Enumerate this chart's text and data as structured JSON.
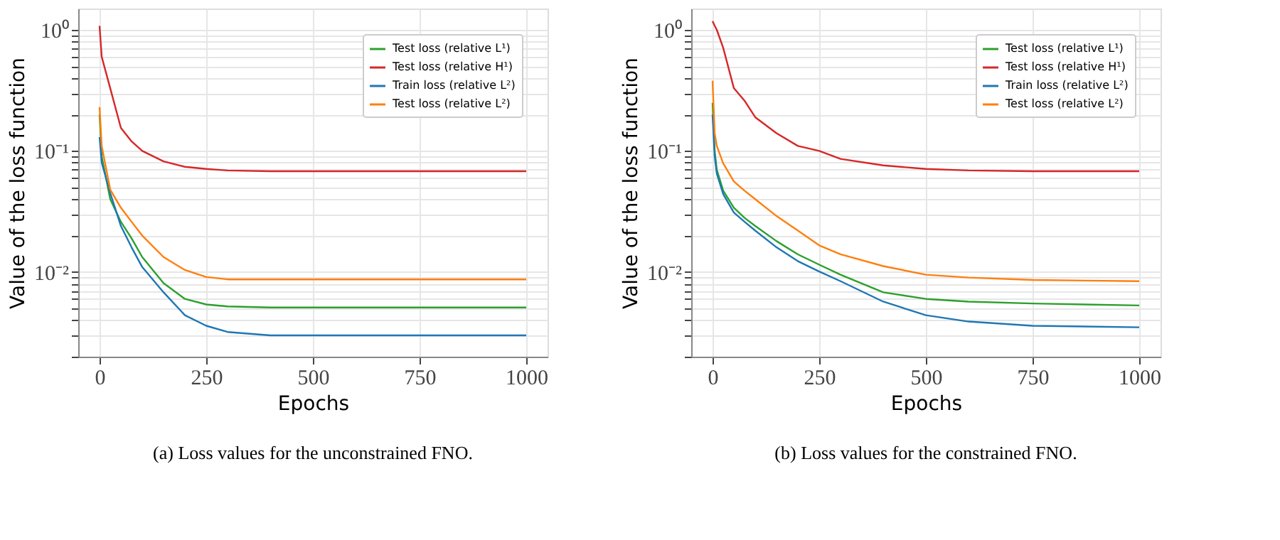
{
  "chart_data": [
    {
      "type": "line",
      "title": "(a) Loss values for the unconstrained FNO.",
      "xlabel": "Epochs",
      "ylabel": "Value of the loss function",
      "log": "y",
      "grid": true,
      "legend": "top right",
      "marker": "none",
      "line_style": "solid",
      "xlim": [
        -50,
        1050
      ],
      "xticks": [
        0,
        250,
        500,
        750,
        1000
      ],
      "ylim": [
        0.002,
        1.5
      ],
      "yticks": [
        {
          "value": 0.002,
          "label": null
        },
        {
          "value": 0.003,
          "label": null
        },
        {
          "value": 0.004,
          "label": null
        },
        {
          "value": 0.005,
          "label": null
        },
        {
          "value": 0.006,
          "label": null
        },
        {
          "value": 0.007,
          "label": null
        },
        {
          "value": 0.008,
          "label": null
        },
        {
          "value": 0.009,
          "label": null
        },
        {
          "value": 0.01,
          "label": "10⁻²"
        },
        {
          "value": 0.02,
          "label": null
        },
        {
          "value": 0.03,
          "label": null
        },
        {
          "value": 0.04,
          "label": null
        },
        {
          "value": 0.05,
          "label": null
        },
        {
          "value": 0.06,
          "label": null
        },
        {
          "value": 0.07,
          "label": null
        },
        {
          "value": 0.08,
          "label": null
        },
        {
          "value": 0.09,
          "label": null
        },
        {
          "value": 0.1,
          "label": "10⁻¹"
        },
        {
          "value": 0.2,
          "label": null
        },
        {
          "value": 0.3,
          "label": null
        },
        {
          "value": 0.4,
          "label": null
        },
        {
          "value": 0.5,
          "label": null
        },
        {
          "value": 0.6,
          "label": null
        },
        {
          "value": 0.7,
          "label": null
        },
        {
          "value": 0.8,
          "label": null
        },
        {
          "value": 0.9,
          "label": null
        },
        {
          "value": 1,
          "label": "10⁰"
        }
      ],
      "x": [
        0,
        5,
        25,
        50,
        75,
        100,
        150,
        200,
        250,
        300,
        400,
        500,
        750,
        1000
      ],
      "series": [
        {
          "name": "Test loss (relative L¹)",
          "color": "#2ca02c",
          "values": [
            0.2,
            0.09,
            0.04,
            0.026,
            0.019,
            0.0133,
            0.0081,
            0.006,
            0.0054,
            0.0052,
            0.0051,
            0.0051,
            0.0051,
            0.0051
          ]
        },
        {
          "name": "Test loss (relative H¹)",
          "color": "#d62728",
          "values": [
            1.08,
            0.6,
            0.33,
            0.155,
            0.12,
            0.1,
            0.082,
            0.074,
            0.071,
            0.069,
            0.068,
            0.068,
            0.068,
            0.068
          ]
        },
        {
          "name": "Train loss (relative L²)",
          "color": "#1f77b4",
          "values": [
            0.13,
            0.08,
            0.045,
            0.024,
            0.016,
            0.011,
            0.0068,
            0.0044,
            0.0036,
            0.0032,
            0.003,
            0.003,
            0.003,
            0.003
          ]
        },
        {
          "name": "Test loss (relative L²)",
          "color": "#ff7f0e",
          "values": [
            0.23,
            0.11,
            0.048,
            0.034,
            0.026,
            0.02,
            0.0133,
            0.0104,
            0.0091,
            0.0087,
            0.0087,
            0.0087,
            0.0087,
            0.0087
          ]
        }
      ]
    },
    {
      "type": "line",
      "title": "(b) Loss values for the constrained FNO.",
      "xlabel": "Epochs",
      "ylabel": "Value of the loss function",
      "log": "y",
      "grid": true,
      "legend": "top right",
      "marker": "none",
      "line_style": "solid",
      "xlim": [
        -50,
        1050
      ],
      "xticks": [
        0,
        250,
        500,
        750,
        1000
      ],
      "ylim": [
        0.002,
        1.5
      ],
      "yticks": [
        {
          "value": 0.002,
          "label": null
        },
        {
          "value": 0.003,
          "label": null
        },
        {
          "value": 0.004,
          "label": null
        },
        {
          "value": 0.005,
          "label": null
        },
        {
          "value": 0.006,
          "label": null
        },
        {
          "value": 0.007,
          "label": null
        },
        {
          "value": 0.008,
          "label": null
        },
        {
          "value": 0.009,
          "label": null
        },
        {
          "value": 0.01,
          "label": "10⁻²"
        },
        {
          "value": 0.02,
          "label": null
        },
        {
          "value": 0.03,
          "label": null
        },
        {
          "value": 0.04,
          "label": null
        },
        {
          "value": 0.05,
          "label": null
        },
        {
          "value": 0.06,
          "label": null
        },
        {
          "value": 0.07,
          "label": null
        },
        {
          "value": 0.08,
          "label": null
        },
        {
          "value": 0.09,
          "label": null
        },
        {
          "value": 0.1,
          "label": "10⁻¹"
        },
        {
          "value": 0.2,
          "label": null
        },
        {
          "value": 0.3,
          "label": null
        },
        {
          "value": 0.4,
          "label": null
        },
        {
          "value": 0.5,
          "label": null
        },
        {
          "value": 0.6,
          "label": null
        },
        {
          "value": 0.7,
          "label": null
        },
        {
          "value": 0.8,
          "label": null
        },
        {
          "value": 0.9,
          "label": null
        },
        {
          "value": 1,
          "label": "10⁰"
        }
      ],
      "x": [
        0,
        5,
        10,
        25,
        50,
        75,
        100,
        150,
        200,
        250,
        300,
        400,
        500,
        600,
        750,
        1000
      ],
      "series": [
        {
          "name": "Test loss (relative L¹)",
          "color": "#2ca02c",
          "values": [
            0.25,
            0.1,
            0.07,
            0.047,
            0.034,
            0.028,
            0.024,
            0.018,
            0.014,
            0.0115,
            0.0095,
            0.0068,
            0.006,
            0.0057,
            0.0055,
            0.0053
          ]
        },
        {
          "name": "Test loss (relative H¹)",
          "color": "#d62728",
          "values": [
            1.18,
            1.08,
            1.0,
            0.71,
            0.33,
            0.26,
            0.19,
            0.14,
            0.11,
            0.1,
            0.086,
            0.076,
            0.071,
            0.069,
            0.068,
            0.068
          ]
        },
        {
          "name": "Train loss (relative L²)",
          "color": "#1f77b4",
          "values": [
            0.2,
            0.09,
            0.065,
            0.044,
            0.031,
            0.026,
            0.022,
            0.016,
            0.0123,
            0.0101,
            0.0084,
            0.0057,
            0.0044,
            0.0039,
            0.0036,
            0.0035
          ]
        },
        {
          "name": "Test loss (relative L²)",
          "color": "#ff7f0e",
          "values": [
            0.38,
            0.14,
            0.11,
            0.079,
            0.056,
            0.047,
            0.04,
            0.029,
            0.022,
            0.0166,
            0.014,
            0.0112,
            0.0095,
            0.009,
            0.0086,
            0.0084
          ]
        }
      ]
    }
  ]
}
